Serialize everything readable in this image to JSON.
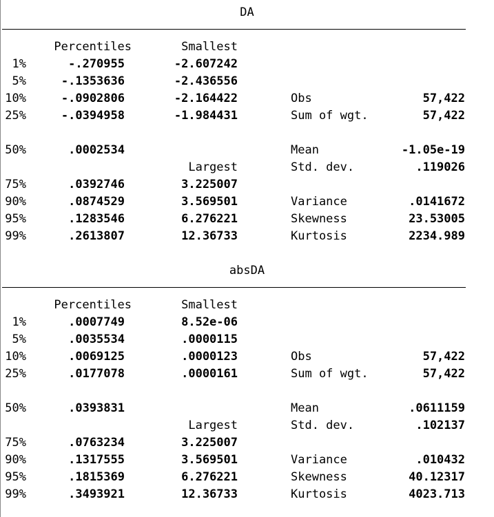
{
  "blocks": [
    {
      "title": "DA",
      "headers": {
        "percentiles": "Percentiles",
        "smallest": "Smallest",
        "largest": "Largest"
      },
      "percentiles": [
        {
          "label": "1%",
          "value": "-.270955"
        },
        {
          "label": "5%",
          "value": "-.1353636"
        },
        {
          "label": "10%",
          "value": "-.0902806"
        },
        {
          "label": "25%",
          "value": "-.0394958"
        },
        {
          "label": "50%",
          "value": ".0002534"
        },
        {
          "label": "75%",
          "value": ".0392746"
        },
        {
          "label": "90%",
          "value": ".0874529"
        },
        {
          "label": "95%",
          "value": ".1283546"
        },
        {
          "label": "99%",
          "value": ".2613807"
        }
      ],
      "smallest": [
        "-2.607242",
        "-2.436556",
        "-2.164422",
        "-1.984431"
      ],
      "largest": [
        "3.225007",
        "3.569501",
        "6.276221",
        "12.36733"
      ],
      "stats": [
        {
          "label": "Obs",
          "value": "57,422"
        },
        {
          "label": "Sum of wgt.",
          "value": "57,422"
        },
        {
          "label": "Mean",
          "value": "-1.05e-19"
        },
        {
          "label": "Std. dev.",
          "value": ".119026"
        },
        {
          "label": "Variance",
          "value": ".0141672"
        },
        {
          "label": "Skewness",
          "value": "23.53005"
        },
        {
          "label": "Kurtosis",
          "value": "2234.989"
        }
      ]
    },
    {
      "title": "absDA",
      "headers": {
        "percentiles": "Percentiles",
        "smallest": "Smallest",
        "largest": "Largest"
      },
      "percentiles": [
        {
          "label": "1%",
          "value": ".0007749"
        },
        {
          "label": "5%",
          "value": ".0035534"
        },
        {
          "label": "10%",
          "value": ".0069125"
        },
        {
          "label": "25%",
          "value": ".0177078"
        },
        {
          "label": "50%",
          "value": ".0393831"
        },
        {
          "label": "75%",
          "value": ".0763234"
        },
        {
          "label": "90%",
          "value": ".1317555"
        },
        {
          "label": "95%",
          "value": ".1815369"
        },
        {
          "label": "99%",
          "value": ".3493921"
        }
      ],
      "smallest": [
        "8.52e-06",
        ".0000115",
        ".0000123",
        ".0000161"
      ],
      "largest": [
        "3.225007",
        "3.569501",
        "6.276221",
        "12.36733"
      ],
      "stats": [
        {
          "label": "Obs",
          "value": "57,422"
        },
        {
          "label": "Sum of wgt.",
          "value": "57,422"
        },
        {
          "label": "Mean",
          "value": ".0611159"
        },
        {
          "label": "Std. dev.",
          "value": ".102137"
        },
        {
          "label": "Variance",
          "value": ".010432"
        },
        {
          "label": "Skewness",
          "value": "40.12317"
        },
        {
          "label": "Kurtosis",
          "value": "4023.713"
        }
      ]
    }
  ]
}
